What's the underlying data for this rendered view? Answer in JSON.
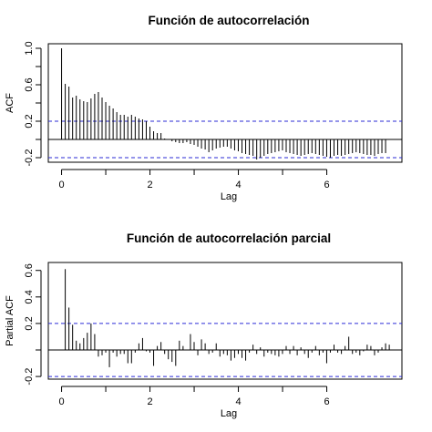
{
  "chart_data": [
    {
      "type": "bar",
      "title": "Función de autocorrelación",
      "xlabel": "Lag",
      "ylabel": "ACF",
      "xlim": [
        -0.3,
        7.7
      ],
      "ylim": [
        -0.25,
        1.05
      ],
      "xticks": [
        "0",
        "2",
        "4",
        "6"
      ],
      "yticks": [
        "-0.2",
        "0.2",
        "0.6",
        "1.0"
      ],
      "yticks_minor": [
        "0.0",
        "0.4",
        "0.8"
      ],
      "ci": 0.2,
      "grid": false,
      "lag_step": 0.0833,
      "values": [
        1.0,
        0.61,
        0.58,
        0.46,
        0.48,
        0.44,
        0.42,
        0.41,
        0.45,
        0.5,
        0.52,
        0.46,
        0.41,
        0.37,
        0.34,
        0.3,
        0.27,
        0.27,
        0.25,
        0.27,
        0.25,
        0.23,
        0.22,
        0.2,
        0.14,
        0.09,
        0.07,
        0.07,
        0.01,
        0.0,
        -0.02,
        -0.03,
        -0.04,
        -0.04,
        -0.03,
        -0.05,
        -0.06,
        -0.08,
        -0.1,
        -0.11,
        -0.14,
        -0.12,
        -0.1,
        -0.09,
        -0.08,
        -0.08,
        -0.1,
        -0.12,
        -0.13,
        -0.15,
        -0.16,
        -0.17,
        -0.18,
        -0.22,
        -0.2,
        -0.18,
        -0.16,
        -0.15,
        -0.14,
        -0.13,
        -0.12,
        -0.14,
        -0.15,
        -0.16,
        -0.17,
        -0.18,
        -0.17,
        -0.16,
        -0.15,
        -0.16,
        -0.17,
        -0.18,
        -0.19,
        -0.2,
        -0.18,
        -0.17,
        -0.18,
        -0.17,
        -0.16,
        -0.15,
        -0.14,
        -0.15,
        -0.16,
        -0.17,
        -0.17,
        -0.18,
        -0.16,
        -0.15,
        -0.15
      ]
    },
    {
      "type": "bar",
      "title": "Función de autocorrelación parcial",
      "xlabel": "Lag",
      "ylabel": "Partial ACF",
      "xlim": [
        -0.3,
        7.7
      ],
      "ylim": [
        -0.22,
        0.66
      ],
      "xticks": [
        "0",
        "2",
        "4",
        "6"
      ],
      "yticks": [
        "-0.2",
        "0.2",
        "0.4",
        "0.6"
      ],
      "yticks_minor": [
        "0.0"
      ],
      "ci": 0.2,
      "grid": false,
      "lag_step": 0.0833,
      "values": [
        0.61,
        0.32,
        0.19,
        0.07,
        0.05,
        0.09,
        0.13,
        0.2,
        0.12,
        -0.05,
        -0.04,
        -0.02,
        -0.13,
        -0.02,
        -0.05,
        -0.03,
        -0.03,
        -0.1,
        -0.1,
        -0.02,
        0.05,
        0.09,
        -0.01,
        -0.02,
        -0.12,
        0.03,
        0.06,
        -0.03,
        -0.07,
        -0.09,
        -0.12,
        0.07,
        0.03,
        0.0,
        0.12,
        0.06,
        -0.04,
        0.08,
        0.05,
        -0.03,
        -0.02,
        0.05,
        -0.05,
        -0.03,
        -0.04,
        -0.08,
        -0.06,
        -0.03,
        -0.06,
        -0.08,
        -0.02,
        0.04,
        -0.03,
        0.02,
        -0.05,
        -0.02,
        -0.03,
        -0.04,
        -0.05,
        -0.03,
        0.03,
        -0.03,
        0.03,
        -0.04,
        0.02,
        -0.03,
        -0.06,
        -0.02,
        0.03,
        -0.04,
        -0.02,
        -0.1,
        -0.02,
        0.04,
        -0.02,
        -0.03,
        0.03,
        0.1,
        -0.03,
        -0.02,
        -0.04,
        -0.01,
        0.04,
        0.03,
        -0.04,
        -0.02,
        0.02,
        0.05,
        0.04
      ]
    }
  ]
}
